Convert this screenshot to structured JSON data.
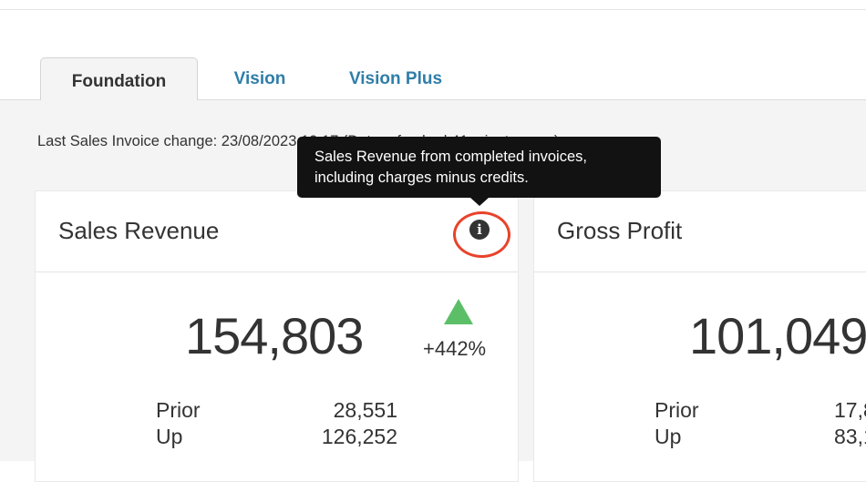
{
  "tabs": [
    {
      "label": "Foundation",
      "active": true
    },
    {
      "label": "Vision"
    },
    {
      "label": "Vision Plus"
    }
  ],
  "last_change": "Last Sales Invoice change: 23/08/2023 10:17 (Data refreshed 41 minutes ago)",
  "tooltip": {
    "line1": "Sales Revenue from completed invoices,",
    "line2": "including charges minus credits."
  },
  "cards": [
    {
      "title": "Sales Revenue",
      "value": "154,803",
      "trend": "up",
      "change": "+442%",
      "prior_label": "Prior",
      "prior": "28,551",
      "up_label": "Up",
      "up": "126,252"
    },
    {
      "title": "Gross Profit",
      "value": "101,049",
      "prior_label": "Prior",
      "prior": "17,8",
      "up_label": "Up",
      "up": "83,1"
    }
  ],
  "colors": {
    "tab_link": "#2f7ea8",
    "trend_up": "#5cbf68",
    "highlight": "#e8432a",
    "tooltip_bg": "#121212"
  }
}
